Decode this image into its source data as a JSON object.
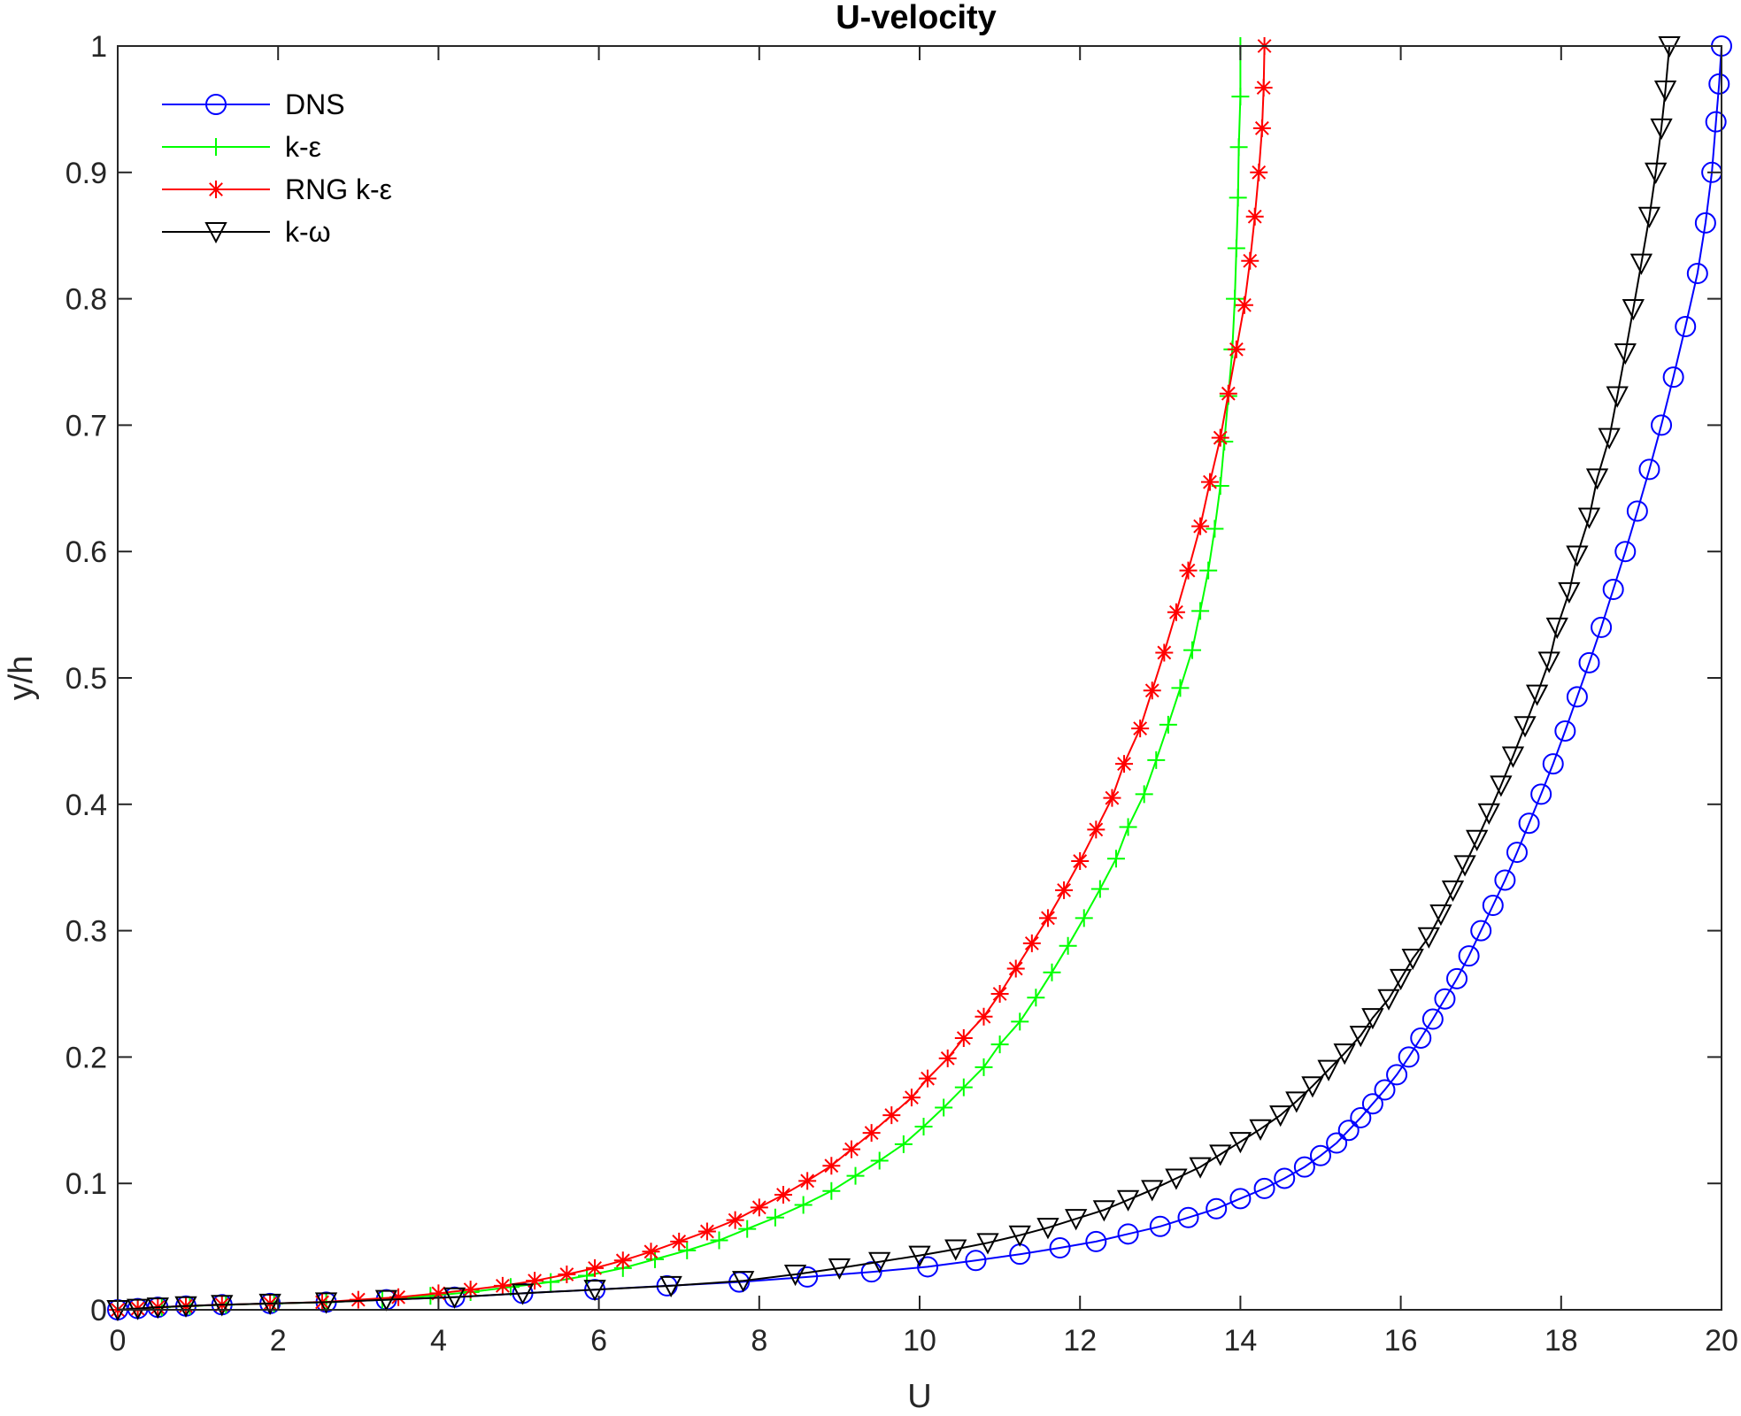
{
  "chart_data": {
    "type": "line",
    "title": "U-velocity",
    "xlabel": "U",
    "ylabel": "y/h",
    "xlim": [
      0,
      20
    ],
    "ylim": [
      0,
      1
    ],
    "xticks": [
      "0",
      "2",
      "4",
      "6",
      "8",
      "10",
      "12",
      "14",
      "16",
      "18",
      "20"
    ],
    "yticks": [
      "0",
      "0.1",
      "0.2",
      "0.3",
      "0.4",
      "0.5",
      "0.6",
      "0.7",
      "0.8",
      "0.9",
      "1"
    ],
    "grid": false,
    "legend_position": "top-left",
    "series": [
      {
        "name": "DNS",
        "color": "#0000ff",
        "marker": "circle",
        "points": [
          [
            0,
            0
          ],
          [
            0.25,
            0.001
          ],
          [
            0.5,
            0.002
          ],
          [
            0.85,
            0.003
          ],
          [
            1.3,
            0.004
          ],
          [
            1.9,
            0.005
          ],
          [
            2.6,
            0.006
          ],
          [
            3.35,
            0.008
          ],
          [
            4.2,
            0.01
          ],
          [
            5.05,
            0.013
          ],
          [
            5.95,
            0.016
          ],
          [
            6.85,
            0.019
          ],
          [
            7.75,
            0.022
          ],
          [
            8.6,
            0.026
          ],
          [
            9.4,
            0.03
          ],
          [
            10.1,
            0.034
          ],
          [
            10.7,
            0.039
          ],
          [
            11.25,
            0.044
          ],
          [
            11.75,
            0.049
          ],
          [
            12.2,
            0.054
          ],
          [
            12.6,
            0.06
          ],
          [
            13.0,
            0.066
          ],
          [
            13.35,
            0.073
          ],
          [
            13.7,
            0.08
          ],
          [
            14.0,
            0.088
          ],
          [
            14.3,
            0.096
          ],
          [
            14.55,
            0.104
          ],
          [
            14.8,
            0.113
          ],
          [
            15.0,
            0.122
          ],
          [
            15.2,
            0.132
          ],
          [
            15.35,
            0.142
          ],
          [
            15.5,
            0.152
          ],
          [
            15.65,
            0.163
          ],
          [
            15.8,
            0.174
          ],
          [
            15.95,
            0.186
          ],
          [
            16.1,
            0.2
          ],
          [
            16.25,
            0.215
          ],
          [
            16.4,
            0.23
          ],
          [
            16.55,
            0.246
          ],
          [
            16.7,
            0.262
          ],
          [
            16.85,
            0.28
          ],
          [
            17.0,
            0.3
          ],
          [
            17.15,
            0.32
          ],
          [
            17.3,
            0.34
          ],
          [
            17.45,
            0.362
          ],
          [
            17.6,
            0.385
          ],
          [
            17.75,
            0.408
          ],
          [
            17.9,
            0.432
          ],
          [
            18.05,
            0.458
          ],
          [
            18.2,
            0.485
          ],
          [
            18.35,
            0.512
          ],
          [
            18.5,
            0.54
          ],
          [
            18.65,
            0.57
          ],
          [
            18.8,
            0.6
          ],
          [
            18.95,
            0.632
          ],
          [
            19.1,
            0.665
          ],
          [
            19.25,
            0.7
          ],
          [
            19.4,
            0.738
          ],
          [
            19.55,
            0.778
          ],
          [
            19.7,
            0.82
          ],
          [
            19.8,
            0.86
          ],
          [
            19.88,
            0.9
          ],
          [
            19.93,
            0.94
          ],
          [
            19.97,
            0.97
          ],
          [
            20.0,
            1.0
          ]
        ]
      },
      {
        "name": "k-ε",
        "color": "#00ff00",
        "marker": "plus",
        "points": [
          [
            0,
            0
          ],
          [
            0.25,
            0.001
          ],
          [
            0.55,
            0.002
          ],
          [
            0.9,
            0.003
          ],
          [
            1.35,
            0.004
          ],
          [
            1.95,
            0.005
          ],
          [
            2.6,
            0.006
          ],
          [
            3.3,
            0.008
          ],
          [
            3.9,
            0.011
          ],
          [
            4.4,
            0.014
          ],
          [
            4.9,
            0.018
          ],
          [
            5.4,
            0.022
          ],
          [
            5.85,
            0.027
          ],
          [
            6.3,
            0.033
          ],
          [
            6.7,
            0.04
          ],
          [
            7.1,
            0.047
          ],
          [
            7.5,
            0.055
          ],
          [
            7.85,
            0.064
          ],
          [
            8.2,
            0.073
          ],
          [
            8.55,
            0.083
          ],
          [
            8.9,
            0.094
          ],
          [
            9.2,
            0.106
          ],
          [
            9.5,
            0.118
          ],
          [
            9.8,
            0.131
          ],
          [
            10.05,
            0.145
          ],
          [
            10.3,
            0.16
          ],
          [
            10.55,
            0.176
          ],
          [
            10.8,
            0.192
          ],
          [
            11.0,
            0.21
          ],
          [
            11.25,
            0.228
          ],
          [
            11.45,
            0.247
          ],
          [
            11.65,
            0.267
          ],
          [
            11.85,
            0.288
          ],
          [
            12.05,
            0.31
          ],
          [
            12.25,
            0.333
          ],
          [
            12.45,
            0.357
          ],
          [
            12.6,
            0.382
          ],
          [
            12.8,
            0.408
          ],
          [
            12.95,
            0.435
          ],
          [
            13.1,
            0.463
          ],
          [
            13.25,
            0.492
          ],
          [
            13.4,
            0.522
          ],
          [
            13.5,
            0.553
          ],
          [
            13.6,
            0.585
          ],
          [
            13.68,
            0.618
          ],
          [
            13.75,
            0.652
          ],
          [
            13.8,
            0.687
          ],
          [
            13.85,
            0.723
          ],
          [
            13.9,
            0.76
          ],
          [
            13.93,
            0.8
          ],
          [
            13.95,
            0.84
          ],
          [
            13.97,
            0.88
          ],
          [
            13.98,
            0.92
          ],
          [
            14.0,
            0.96
          ],
          [
            14.0,
            1.0
          ]
        ]
      },
      {
        "name": "RNG k-ε",
        "color": "#ff0000",
        "marker": "asterisk",
        "points": [
          [
            0,
            0
          ],
          [
            0.25,
            0.001
          ],
          [
            0.5,
            0.002
          ],
          [
            0.85,
            0.003
          ],
          [
            1.3,
            0.004
          ],
          [
            1.9,
            0.005
          ],
          [
            2.55,
            0.006
          ],
          [
            3.0,
            0.008
          ],
          [
            3.5,
            0.01
          ],
          [
            4.0,
            0.013
          ],
          [
            4.4,
            0.016
          ],
          [
            4.8,
            0.019
          ],
          [
            5.2,
            0.023
          ],
          [
            5.6,
            0.028
          ],
          [
            5.95,
            0.033
          ],
          [
            6.3,
            0.039
          ],
          [
            6.65,
            0.046
          ],
          [
            7.0,
            0.054
          ],
          [
            7.35,
            0.062
          ],
          [
            7.7,
            0.071
          ],
          [
            8.0,
            0.081
          ],
          [
            8.3,
            0.091
          ],
          [
            8.6,
            0.102
          ],
          [
            8.9,
            0.114
          ],
          [
            9.15,
            0.127
          ],
          [
            9.4,
            0.14
          ],
          [
            9.65,
            0.154
          ],
          [
            9.9,
            0.168
          ],
          [
            10.1,
            0.183
          ],
          [
            10.35,
            0.199
          ],
          [
            10.55,
            0.215
          ],
          [
            10.8,
            0.232
          ],
          [
            11.0,
            0.25
          ],
          [
            11.2,
            0.27
          ],
          [
            11.4,
            0.29
          ],
          [
            11.6,
            0.31
          ],
          [
            11.8,
            0.332
          ],
          [
            12.0,
            0.355
          ],
          [
            12.2,
            0.38
          ],
          [
            12.4,
            0.405
          ],
          [
            12.55,
            0.432
          ],
          [
            12.75,
            0.46
          ],
          [
            12.9,
            0.49
          ],
          [
            13.05,
            0.52
          ],
          [
            13.2,
            0.552
          ],
          [
            13.35,
            0.585
          ],
          [
            13.5,
            0.62
          ],
          [
            13.62,
            0.655
          ],
          [
            13.75,
            0.69
          ],
          [
            13.85,
            0.725
          ],
          [
            13.95,
            0.76
          ],
          [
            14.05,
            0.795
          ],
          [
            14.12,
            0.83
          ],
          [
            14.18,
            0.865
          ],
          [
            14.23,
            0.9
          ],
          [
            14.27,
            0.935
          ],
          [
            14.29,
            0.967
          ],
          [
            14.3,
            1.0
          ]
        ]
      },
      {
        "name": "k-ω",
        "color": "#000000",
        "marker": "triangle-down",
        "points": [
          [
            0,
            0
          ],
          [
            0.25,
            0.001
          ],
          [
            0.5,
            0.002
          ],
          [
            0.85,
            0.003
          ],
          [
            1.3,
            0.004
          ],
          [
            1.9,
            0.005
          ],
          [
            2.6,
            0.006
          ],
          [
            3.35,
            0.008
          ],
          [
            4.2,
            0.01
          ],
          [
            5.05,
            0.013
          ],
          [
            5.95,
            0.016
          ],
          [
            6.9,
            0.019
          ],
          [
            7.8,
            0.023
          ],
          [
            8.45,
            0.028
          ],
          [
            9.0,
            0.033
          ],
          [
            9.5,
            0.038
          ],
          [
            10.0,
            0.043
          ],
          [
            10.45,
            0.048
          ],
          [
            10.85,
            0.053
          ],
          [
            11.25,
            0.059
          ],
          [
            11.6,
            0.065
          ],
          [
            11.95,
            0.072
          ],
          [
            12.3,
            0.079
          ],
          [
            12.6,
            0.087
          ],
          [
            12.9,
            0.095
          ],
          [
            13.2,
            0.104
          ],
          [
            13.5,
            0.113
          ],
          [
            13.75,
            0.123
          ],
          [
            14.0,
            0.133
          ],
          [
            14.25,
            0.143
          ],
          [
            14.5,
            0.154
          ],
          [
            14.7,
            0.165
          ],
          [
            14.9,
            0.177
          ],
          [
            15.1,
            0.19
          ],
          [
            15.3,
            0.203
          ],
          [
            15.5,
            0.217
          ],
          [
            15.65,
            0.231
          ],
          [
            15.85,
            0.246
          ],
          [
            16.0,
            0.262
          ],
          [
            16.15,
            0.278
          ],
          [
            16.35,
            0.295
          ],
          [
            16.5,
            0.313
          ],
          [
            16.65,
            0.332
          ],
          [
            16.8,
            0.352
          ],
          [
            16.95,
            0.372
          ],
          [
            17.1,
            0.393
          ],
          [
            17.25,
            0.415
          ],
          [
            17.4,
            0.438
          ],
          [
            17.55,
            0.462
          ],
          [
            17.7,
            0.487
          ],
          [
            17.85,
            0.513
          ],
          [
            17.95,
            0.54
          ],
          [
            18.1,
            0.568
          ],
          [
            18.2,
            0.597
          ],
          [
            18.35,
            0.627
          ],
          [
            18.45,
            0.658
          ],
          [
            18.6,
            0.69
          ],
          [
            18.7,
            0.723
          ],
          [
            18.8,
            0.757
          ],
          [
            18.9,
            0.792
          ],
          [
            19.0,
            0.828
          ],
          [
            19.1,
            0.865
          ],
          [
            19.18,
            0.9
          ],
          [
            19.25,
            0.935
          ],
          [
            19.3,
            0.965
          ],
          [
            19.35,
            1.0
          ]
        ]
      }
    ]
  }
}
